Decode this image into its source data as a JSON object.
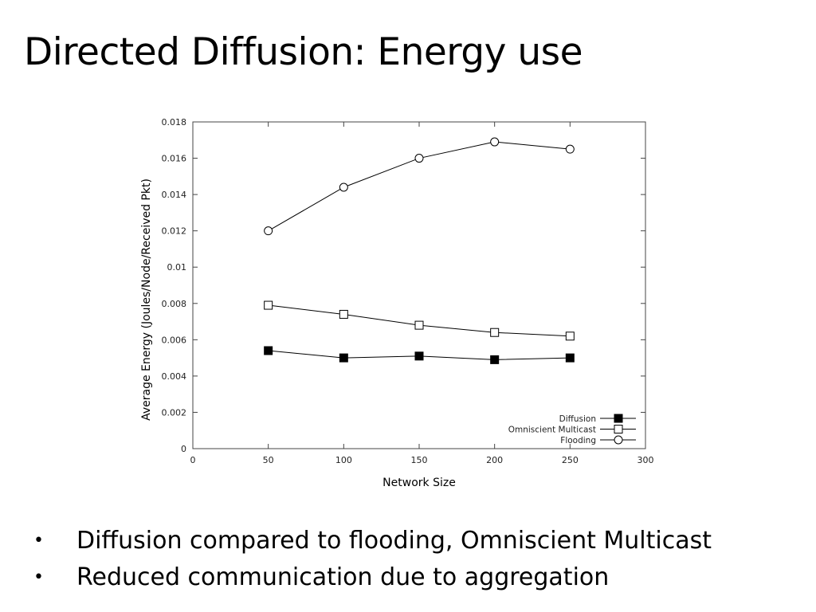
{
  "slide": {
    "title": "Directed Diffusion: Energy use",
    "bullets": [
      "Diffusion compared to flooding, Omniscient Multicast",
      "Reduced communication due to aggregation"
    ],
    "bullet_glyph": "•"
  },
  "chart_data": {
    "type": "line",
    "title": "",
    "xlabel": "Network Size",
    "ylabel": "Average Energy (Joules/Node/Received Pkt)",
    "xlim": [
      0,
      300
    ],
    "ylim": [
      0,
      0.018
    ],
    "x_ticks": [
      "0",
      "50",
      "100",
      "150",
      "200",
      "250",
      "300"
    ],
    "y_ticks": [
      "0",
      "0.002",
      "0.004",
      "0.006",
      "0.008",
      "0.01",
      "0.012",
      "0.014",
      "0.016",
      "0.018"
    ],
    "x": [
      50,
      100,
      150,
      200,
      250
    ],
    "series": [
      {
        "name": "Diffusion",
        "marker": "filled-square",
        "values": [
          0.0054,
          0.005,
          0.0051,
          0.0049,
          0.005
        ]
      },
      {
        "name": "Omniscient Multicast",
        "marker": "open-square",
        "values": [
          0.0079,
          0.0074,
          0.0068,
          0.0064,
          0.0062
        ]
      },
      {
        "name": "Flooding",
        "marker": "open-circle",
        "values": [
          0.012,
          0.0144,
          0.016,
          0.0169,
          0.0165
        ]
      }
    ],
    "legend_position": "bottom-right",
    "grid": false,
    "line_color": "#000000"
  }
}
